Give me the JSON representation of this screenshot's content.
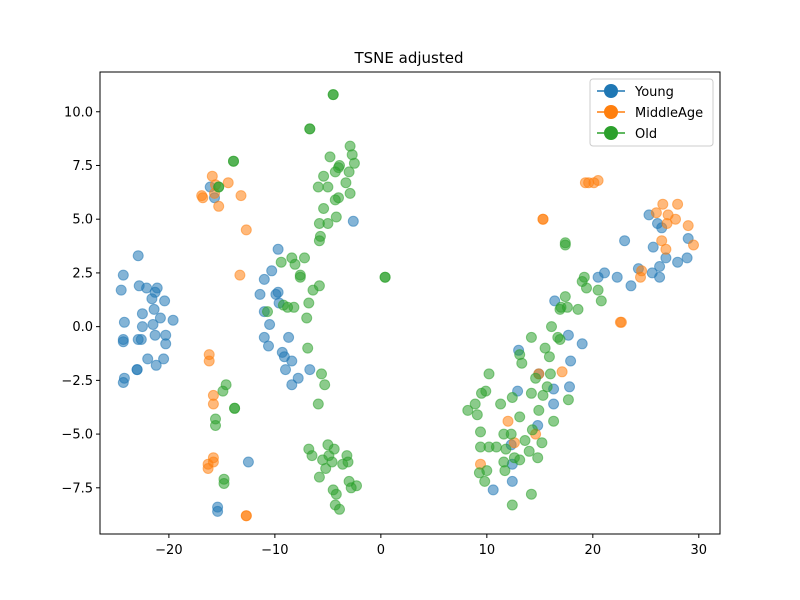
{
  "chart_data": {
    "type": "scatter",
    "title": "TSNE adjusted",
    "xlabel": "",
    "ylabel": "",
    "xlim": [
      -26.5,
      32
    ],
    "ylim": [
      -9.65,
      11.85
    ],
    "xticks": [
      -20,
      -10,
      0,
      10,
      20,
      30
    ],
    "yticks": [
      -7.5,
      -5.0,
      -2.5,
      0.0,
      2.5,
      5.0,
      7.5,
      10.0
    ],
    "xtick_labels": [
      "−20",
      "−10",
      "0",
      "10",
      "20",
      "30"
    ],
    "ytick_labels": [
      "−7.5",
      "−5.0",
      "−2.5",
      "0.0",
      "2.5",
      "5.0",
      "7.5",
      "10.0"
    ],
    "grid": false,
    "legend_position": "top-right",
    "marker_opacity": 0.55,
    "series": [
      {
        "name": "Young",
        "color": "#1f77b4",
        "points": [
          [
            -24.3,
            2.4
          ],
          [
            -22.9,
            3.3
          ],
          [
            -22.8,
            1.9
          ],
          [
            -24.5,
            1.7
          ],
          [
            -22.1,
            1.8
          ],
          [
            -21.3,
            1.6
          ],
          [
            -21.1,
            1.8
          ],
          [
            -20.4,
            1.2
          ],
          [
            -21.6,
            1.3
          ],
          [
            -21.4,
            0.8
          ],
          [
            -19.6,
            0.3
          ],
          [
            -20.8,
            0.4
          ],
          [
            -22.5,
            0.6
          ],
          [
            -24.2,
            0.2
          ],
          [
            -22.5,
            0.0
          ],
          [
            -21.5,
            0.1
          ],
          [
            -20.3,
            -0.4
          ],
          [
            -21.3,
            -0.4
          ],
          [
            -22.6,
            -0.6
          ],
          [
            -22.9,
            -0.6
          ],
          [
            -24.3,
            -0.7
          ],
          [
            -24.3,
            -0.6
          ],
          [
            -20.3,
            -0.8
          ],
          [
            -22.0,
            -1.5
          ],
          [
            -21.2,
            -1.8
          ],
          [
            -20.5,
            -1.5
          ],
          [
            -23.0,
            -2.0
          ],
          [
            -23.0,
            -2.0
          ],
          [
            -24.2,
            -2.4
          ],
          [
            -24.3,
            -2.6
          ],
          [
            -9.7,
            3.6
          ],
          [
            -10.3,
            2.6
          ],
          [
            -11.0,
            2.2
          ],
          [
            -9.7,
            1.6
          ],
          [
            -9.9,
            1.5
          ],
          [
            -11.4,
            1.5
          ],
          [
            -9.6,
            1.1
          ],
          [
            -11.0,
            0.7
          ],
          [
            -10.5,
            0.1
          ],
          [
            -11.0,
            -0.5
          ],
          [
            -10.6,
            -0.9
          ],
          [
            -8.7,
            -0.5
          ],
          [
            -9.3,
            -1.2
          ],
          [
            -9.1,
            -1.4
          ],
          [
            -8.4,
            -1.6
          ],
          [
            -9.0,
            -2.0
          ],
          [
            -7.8,
            -2.4
          ],
          [
            -8.4,
            -2.7
          ],
          [
            -6.7,
            -2.0
          ],
          [
            -2.6,
            4.9
          ],
          [
            -16.1,
            6.5
          ],
          [
            -15.7,
            6.0
          ],
          [
            -12.5,
            -6.3
          ],
          [
            -15.4,
            -8.4
          ],
          [
            -15.4,
            -8.6
          ],
          [
            23.0,
            4.0
          ],
          [
            24.3,
            2.7
          ],
          [
            22.3,
            2.3
          ],
          [
            21.1,
            2.5
          ],
          [
            20.5,
            2.3
          ],
          [
            25.3,
            5.2
          ],
          [
            25.7,
            3.7
          ],
          [
            26.3,
            2.8
          ],
          [
            26.5,
            4.6
          ],
          [
            26.9,
            3.2
          ],
          [
            25.6,
            2.5
          ],
          [
            26.3,
            2.3
          ],
          [
            28.0,
            3.0
          ],
          [
            28.9,
            3.2
          ],
          [
            29.0,
            4.1
          ],
          [
            26.1,
            4.8
          ],
          [
            23.6,
            1.9
          ],
          [
            16.4,
            1.2
          ],
          [
            17.7,
            -0.4
          ],
          [
            17.9,
            -1.6
          ],
          [
            19.0,
            -0.8
          ],
          [
            17.8,
            -2.8
          ],
          [
            16.3,
            -3.6
          ],
          [
            16.3,
            -2.9
          ],
          [
            14.9,
            -2.2
          ],
          [
            13.0,
            -1.1
          ],
          [
            12.9,
            -3.0
          ],
          [
            12.3,
            -5.5
          ],
          [
            12.4,
            -6.4
          ],
          [
            12.4,
            -7.2
          ],
          [
            10.6,
            -7.6
          ],
          [
            14.8,
            -4.6
          ]
        ]
      },
      {
        "name": "MiddleAge",
        "color": "#ff7f0e",
        "points": [
          [
            -16.8,
            6.0
          ],
          [
            -16.9,
            6.1
          ],
          [
            -15.7,
            6.2
          ],
          [
            -15.6,
            6.6
          ],
          [
            -15.3,
            5.6
          ],
          [
            -15.9,
            7.0
          ],
          [
            -14.4,
            6.7
          ],
          [
            -13.2,
            6.1
          ],
          [
            -12.7,
            4.5
          ],
          [
            -13.3,
            2.4
          ],
          [
            -16.2,
            -1.3
          ],
          [
            -16.2,
            -1.6
          ],
          [
            -15.8,
            -3.2
          ],
          [
            -15.8,
            -3.6
          ],
          [
            -16.3,
            -6.4
          ],
          [
            -16.3,
            -6.6
          ],
          [
            -15.8,
            -6.1
          ],
          [
            -15.8,
            -6.3
          ],
          [
            -12.7,
            -8.8
          ],
          [
            -12.7,
            -8.8
          ],
          [
            15.3,
            5.0
          ],
          [
            15.3,
            5.0
          ],
          [
            19.3,
            6.7
          ],
          [
            19.6,
            6.7
          ],
          [
            20.1,
            6.7
          ],
          [
            20.5,
            6.8
          ],
          [
            26.0,
            5.3
          ],
          [
            26.6,
            5.7
          ],
          [
            27.1,
            5.2
          ],
          [
            27.8,
            5.0
          ],
          [
            28.0,
            5.7
          ],
          [
            29.0,
            4.7
          ],
          [
            29.5,
            3.8
          ],
          [
            26.5,
            4.0
          ],
          [
            26.9,
            3.6
          ],
          [
            27.0,
            4.8
          ],
          [
            24.6,
            2.6
          ],
          [
            24.5,
            2.3
          ],
          [
            22.6,
            0.2
          ],
          [
            22.7,
            0.2
          ],
          [
            17.1,
            -2.1
          ],
          [
            14.9,
            -2.2
          ],
          [
            9.4,
            -6.4
          ],
          [
            12.0,
            -4.4
          ],
          [
            14.6,
            -5.0
          ],
          [
            12.6,
            -5.4
          ]
        ]
      },
      {
        "name": "Old",
        "color": "#2ca02c",
        "points": [
          [
            -4.5,
            10.8
          ],
          [
            -4.5,
            10.8
          ],
          [
            -6.7,
            9.2
          ],
          [
            -6.7,
            9.2
          ],
          [
            -2.9,
            8.4
          ],
          [
            -2.7,
            8.0
          ],
          [
            -2.5,
            7.6
          ],
          [
            -4.8,
            7.9
          ],
          [
            -3.9,
            7.5
          ],
          [
            -4.0,
            7.4
          ],
          [
            -4.3,
            7.2
          ],
          [
            -3.0,
            7.2
          ],
          [
            -5.4,
            7.0
          ],
          [
            -5.0,
            6.5
          ],
          [
            -3.3,
            6.7
          ],
          [
            -5.9,
            6.5
          ],
          [
            -4.3,
            5.9
          ],
          [
            -4.0,
            6.0
          ],
          [
            -2.9,
            6.2
          ],
          [
            -5.4,
            5.5
          ],
          [
            -4.2,
            5.1
          ],
          [
            -5.0,
            4.8
          ],
          [
            -5.8,
            4.8
          ],
          [
            -5.7,
            4.2
          ],
          [
            -5.8,
            4.0
          ],
          [
            -7.2,
            3.2
          ],
          [
            -7.6,
            2.4
          ],
          [
            -8.1,
            2.9
          ],
          [
            -8.4,
            3.2
          ],
          [
            -9.4,
            3.0
          ],
          [
            -7.6,
            2.3
          ],
          [
            -5.8,
            1.9
          ],
          [
            -6.4,
            1.7
          ],
          [
            -6.8,
            1.1
          ],
          [
            -7.0,
            0.4
          ],
          [
            -8.8,
            0.9
          ],
          [
            -9.2,
            1.0
          ],
          [
            -10.7,
            0.7
          ],
          [
            -8.2,
            0.9
          ],
          [
            -6.9,
            -1.0
          ],
          [
            -5.6,
            -2.2
          ],
          [
            -5.3,
            -2.7
          ],
          [
            -5.9,
            -3.6
          ],
          [
            -6.8,
            -5.7
          ],
          [
            -6.5,
            -6.0
          ],
          [
            -5.5,
            -6.2
          ],
          [
            -5.0,
            -5.5
          ],
          [
            -4.4,
            -5.7
          ],
          [
            -4.9,
            -6.0
          ],
          [
            -3.2,
            -6.0
          ],
          [
            -4.6,
            -6.3
          ],
          [
            -3.6,
            -6.4
          ],
          [
            -3.1,
            -6.3
          ],
          [
            -5.2,
            -6.6
          ],
          [
            -5.8,
            -7.0
          ],
          [
            -3.0,
            -7.2
          ],
          [
            -2.3,
            -7.4
          ],
          [
            -2.8,
            -7.5
          ],
          [
            -4.5,
            -7.6
          ],
          [
            -4.2,
            -7.8
          ],
          [
            -4.3,
            -8.3
          ],
          [
            -3.9,
            -8.5
          ],
          [
            -13.9,
            7.7
          ],
          [
            -13.9,
            7.7
          ],
          [
            -15.3,
            6.5
          ],
          [
            -15.3,
            6.5
          ],
          [
            -14.6,
            -2.7
          ],
          [
            -14.9,
            -3.0
          ],
          [
            -13.8,
            -3.8
          ],
          [
            -13.8,
            -3.8
          ],
          [
            -15.6,
            -4.3
          ],
          [
            -15.6,
            -4.6
          ],
          [
            -14.8,
            -7.1
          ],
          [
            -14.8,
            -7.3
          ],
          [
            0.4,
            2.3
          ],
          [
            0.4,
            2.3
          ],
          [
            17.4,
            3.9
          ],
          [
            17.4,
            3.8
          ],
          [
            19.0,
            2.1
          ],
          [
            19.2,
            2.3
          ],
          [
            19.4,
            1.8
          ],
          [
            20.5,
            1.7
          ],
          [
            17.4,
            1.4
          ],
          [
            20.8,
            1.2
          ],
          [
            17.0,
            0.9
          ],
          [
            17.6,
            0.9
          ],
          [
            16.9,
            0.8
          ],
          [
            18.6,
            0.8
          ],
          [
            16.1,
            0.0
          ],
          [
            16.7,
            -0.5
          ],
          [
            16.9,
            -0.6
          ],
          [
            15.5,
            -1.0
          ],
          [
            14.2,
            -0.5
          ],
          [
            15.9,
            -1.4
          ],
          [
            13.1,
            -1.3
          ],
          [
            13.3,
            -1.7
          ],
          [
            16.0,
            -2.2
          ],
          [
            15.7,
            -2.8
          ],
          [
            14.6,
            -2.4
          ],
          [
            17.7,
            -3.4
          ],
          [
            15.3,
            -3.2
          ],
          [
            14.2,
            -3.1
          ],
          [
            10.2,
            -2.2
          ],
          [
            12.4,
            -3.3
          ],
          [
            11.3,
            -3.6
          ],
          [
            9.9,
            -3.0
          ],
          [
            8.9,
            -3.6
          ],
          [
            9.5,
            -3.1
          ],
          [
            8.2,
            -3.9
          ],
          [
            9.1,
            -4.1
          ],
          [
            13.1,
            -4.2
          ],
          [
            14.9,
            -3.9
          ],
          [
            16.3,
            -4.4
          ],
          [
            11.6,
            -5.0
          ],
          [
            14.3,
            -4.8
          ],
          [
            12.3,
            -5.0
          ],
          [
            13.6,
            -5.3
          ],
          [
            15.2,
            -5.4
          ],
          [
            9.4,
            -4.9
          ],
          [
            9.4,
            -5.6
          ],
          [
            10.2,
            -5.6
          ],
          [
            10.9,
            -5.6
          ],
          [
            11.8,
            -5.7
          ],
          [
            12.6,
            -6.1
          ],
          [
            13.1,
            -6.2
          ],
          [
            14.0,
            -5.8
          ],
          [
            14.8,
            -6.1
          ],
          [
            11.6,
            -6.3
          ],
          [
            10.0,
            -6.7
          ],
          [
            9.3,
            -6.8
          ],
          [
            11.7,
            -6.7
          ],
          [
            9.8,
            -7.2
          ],
          [
            14.2,
            -7.8
          ],
          [
            12.4,
            -8.3
          ]
        ]
      }
    ]
  }
}
